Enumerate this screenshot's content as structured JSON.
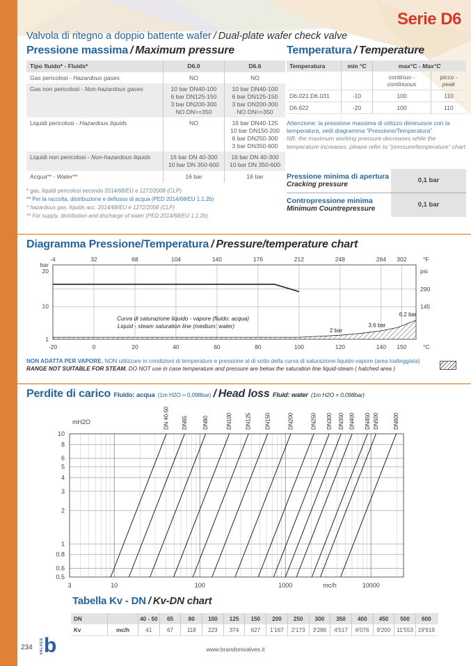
{
  "colors": {
    "accent_orange": "#E08136",
    "divider_orange": "#EDAD79",
    "heading_blue": "#27639C",
    "series_red": "#D4382D",
    "body_gray": "#55575B",
    "note_blue": "#3878B8",
    "table_header_bg": "#E3E3E4",
    "table_alt_bg": "#ECECED",
    "chart_ink": "#231F20",
    "logo_blue": "#2B5EA1"
  },
  "header": {
    "series": "Serie D6",
    "title_it": "Valvola di ritegno a doppio battente wafer",
    "sep": "/",
    "title_en": "Dual-plate wafer check valve"
  },
  "sections": {
    "max_pressure": {
      "heading_it": "Pressione massima",
      "heading_en": "Maximum pressure"
    },
    "temperature": {
      "heading_it": "Temperatura",
      "heading_en": "Temperature"
    },
    "pt_chart": {
      "heading_it": "Diagramma Pressione/Temperatura",
      "heading_en": "Pressure/temperature chart"
    },
    "head_loss": {
      "heading_it": "Perdite di carico",
      "fluid_it": "Fluido: acqua",
      "paren_it": "(1m H2O = 0,098bar)",
      "heading_en": "Head loss",
      "fluid_en": "Fluid: water",
      "paren_en": "(1m H2O = 0,098bar)"
    },
    "kv_dn": {
      "heading_it": "Tabella Kv - DN",
      "heading_en": "Kv-DN chart"
    }
  },
  "max_pressure_table": {
    "header": {
      "it": "Tipo fluido*",
      "en": "Fluids*",
      "col1": "D6.0",
      "col2": "D6.6"
    },
    "rows": [
      {
        "it": "Gas pericolosi",
        "en": "Hazardous gases",
        "d60": [
          "NO"
        ],
        "d66": [
          "NO"
        ],
        "shade": false
      },
      {
        "it": "Gas non pericolosi",
        "en": "Non-hazardous gases",
        "d60": [
          "10 bar DN40-100",
          "6 bar DN125-150",
          "3 bar DN200-300",
          "NO DN>=350"
        ],
        "d66": [
          "10 bar DN40-100",
          "6 bar DN125-150",
          "3 bar DN200-300",
          "NO DN>=350"
        ],
        "shade": true
      },
      {
        "it": "Liquidi pericolosi",
        "en": "Hazardous liquids",
        "d60": [
          "NO"
        ],
        "d66": [
          "16 bar DN40-125",
          "10 bar DN150-200",
          "6 bar DN250-300",
          "3 bar DN350-600"
        ],
        "shade": false
      },
      {
        "it": "Liquidi non pericolosi",
        "en": "Non-hazardous liquids",
        "d60": [
          "16 bar DN 40-300",
          "10 bar DN 350-600"
        ],
        "d66": [
          "16 bar DN 40-300",
          "10 bar DN 350-600"
        ],
        "shade": true
      },
      {
        "it": "Acqua**",
        "en": "Water**",
        "d60": [
          "16 bar"
        ],
        "d66": [
          "16 bar"
        ],
        "shade": false
      }
    ]
  },
  "pressure_footnotes": [
    "* gas, liquidi pericolosi secondo 2014/68/EU e 1272/2008 (CLP)",
    "** Per la raccolta, distribuzione e deflusso di acqua (PED 2014/68/EU 1.1.2b)",
    "* hazardous gas, liquids acc. 2014/68/EU e 1272/2008 (CLP)",
    "** For  supply, distribution and discharge of water (PED 2014/68/EU 1.1.2b)"
  ],
  "temperature_table": {
    "col_temp": "Temperatura",
    "col_min": "min °C",
    "col_max_it": "max°C -",
    "col_max_en": "Max°C",
    "sub_cont_it": "continuo -",
    "sub_cont_en": "continuous",
    "sub_peak_it": "picco -",
    "sub_peak_en": "peak",
    "rows": [
      {
        "model": "D6.021.D6.031",
        "min": "-10",
        "continuous": "100",
        "peak": "110"
      },
      {
        "model": "D6.622",
        "min": "-20",
        "continuous": "100",
        "peak": "110"
      }
    ]
  },
  "temperature_note": {
    "it": "Attenzione: la pressione massima di utilizzo diminuisce con la temperatura, vedi diagramma “Pressione/Temperatura”",
    "en": "NB: the maximum working pressure decreases while the temperature increases; please refer to “pressure/temperature” chart"
  },
  "min_pressure_boxes": [
    {
      "it": "Pressione minima di apertura",
      "en": "Cracking pressure",
      "value": "0,1 bar"
    },
    {
      "it": "Contropressione minima",
      "en": "Minimum Countrepressure",
      "value": "0,1 bar"
    }
  ],
  "steam_warning": {
    "it_bold": "NON ADATTA PER VAPORE.",
    "it_rest": " NON utilizzare in condizioni di temperature e pressione al di sotto della curva di saturazione liquido-vapore (area tratteggiata)",
    "en_bold": "RANGE NOT SUITABLE FOR STEAM.",
    "en_rest": " DO NOT use in case temperature and pressure are below the saturation line liquid-steam ( hatched  area )"
  },
  "chart_data": [
    {
      "type": "line",
      "name": "pressure-temperature-chart",
      "title": "Diagramma Pressione/Temperatura / Pressure/temperature chart",
      "x_bottom": {
        "unit": "°C",
        "min": -20,
        "max": 157,
        "ticks": [
          -20,
          0,
          20,
          40,
          60,
          80,
          100,
          120,
          140,
          150
        ]
      },
      "x_top": {
        "unit": "°F",
        "ticks": [
          -4,
          32,
          68,
          104,
          140,
          176,
          212,
          248,
          284,
          302
        ]
      },
      "y_left": {
        "unit": "bar",
        "min": 1,
        "max": 21.3,
        "ticks": [
          20,
          10,
          1
        ]
      },
      "y_right": {
        "unit": "psi",
        "ticks": [
          290,
          145
        ]
      },
      "series": [
        {
          "name": "max working pressure",
          "points": [
            [
              -20,
              16
            ],
            [
              88,
              16
            ],
            [
              100,
              14
            ]
          ]
        }
      ],
      "saturation_area": {
        "label_it": "Curva di saturazione liquido - vapore (fluido: acqua)",
        "label_en": "Liquid - steam saturation line (medium: water)",
        "points": [
          [
            -20,
            1.55
          ],
          [
            100,
            1.55
          ],
          [
            110,
            1.8
          ],
          [
            120,
            2.1
          ],
          [
            130,
            2.6
          ],
          [
            140,
            3.3
          ],
          [
            148,
            4.2
          ],
          [
            157,
            6.2
          ]
        ],
        "point_labels": [
          {
            "t": 118,
            "bar": 2.5,
            "text": "2 bar"
          },
          {
            "t": 138,
            "bar": 3.9,
            "text": "3.6 bar"
          },
          {
            "t": 153,
            "bar": 6.9,
            "text": "6.2 bar"
          }
        ]
      }
    },
    {
      "type": "line",
      "scale": "log-log",
      "name": "head-loss-chart",
      "title": "Perdite di carico / Head loss",
      "x": {
        "unit": "mc/h",
        "min": 3,
        "max": 24000,
        "ticks": [
          3,
          10,
          100,
          1000,
          10000
        ]
      },
      "y": {
        "unit": "mH2O",
        "min": 0.5,
        "max": 10,
        "ticks": [
          10,
          8,
          6,
          5,
          4,
          3,
          2,
          1,
          0.8,
          0.6,
          0.5
        ]
      },
      "series": [
        {
          "name": "DN 40-50",
          "kv": 41
        },
        {
          "name": "DN65",
          "kv": 67
        },
        {
          "name": "DN80",
          "kv": 118
        },
        {
          "name": "DN100",
          "kv": 223
        },
        {
          "name": "DN125",
          "kv": 374
        },
        {
          "name": "DN150",
          "kv": 627
        },
        {
          "name": "DN200",
          "kv": 1167
        },
        {
          "name": "DN250",
          "kv": 2173
        },
        {
          "name": "DN300",
          "kv": 3286
        },
        {
          "name": "DN350",
          "kv": 4517
        },
        {
          "name": "DN400",
          "kv": 6076
        },
        {
          "name": "DN450",
          "kv": 9200
        },
        {
          "name": "DN500",
          "kv": 11553
        },
        {
          "name": "DN600",
          "kv": 19919
        }
      ]
    }
  ],
  "kv_table": {
    "row1_label": "DN",
    "row2_label": "Kv",
    "row2_unit": "mc/h",
    "dn": [
      "40 - 50",
      "65",
      "80",
      "100",
      "125",
      "150",
      "200",
      "250",
      "300",
      "350",
      "400",
      "450",
      "500",
      "600"
    ],
    "kv": [
      "41",
      "67",
      "118",
      "223",
      "374",
      "627",
      "1'167",
      "2'173",
      "3'286",
      "4'517",
      "6'076",
      "9'200",
      "11'553",
      "19'919"
    ]
  },
  "footer": {
    "page_number": "234",
    "url": "www.brandonivalves.it",
    "logo_letter": "b",
    "logo_text": "VALVES"
  }
}
